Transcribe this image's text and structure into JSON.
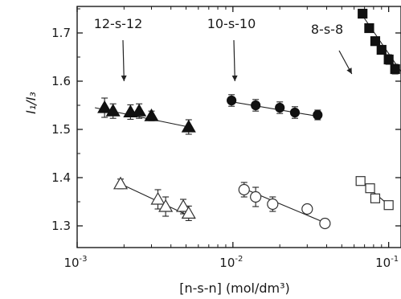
{
  "chart_data": {
    "type": "scatter",
    "title": "",
    "xlabel": "[n-s-n] (mol/dm³)",
    "ylabel": "I₁/I₃",
    "x_scale": "log",
    "xlim": [
      0.001,
      0.12
    ],
    "ylim": [
      1.255,
      1.755
    ],
    "x_ticks": [
      {
        "value": 0.001,
        "mantissa": "10",
        "exponent": "-3"
      },
      {
        "value": 0.01,
        "mantissa": "10",
        "exponent": "-2"
      },
      {
        "value": 0.1,
        "mantissa": "10",
        "exponent": "-1"
      }
    ],
    "y_ticks": [
      "1.3",
      "1.4",
      "1.5",
      "1.6",
      "1.7"
    ],
    "grid": false,
    "annotations": [
      {
        "label": "12-s-12",
        "arrow_to": [
          0.002,
          1.6
        ]
      },
      {
        "label": "10-s-10",
        "arrow_to": [
          0.0103,
          1.6
        ]
      },
      {
        "label": "8-s-8",
        "arrow_to": [
          0.058,
          1.615
        ]
      }
    ],
    "series": [
      {
        "marker": "triangle-filled",
        "x": [
          0.0015,
          0.0017,
          0.0022,
          0.0025,
          0.003,
          0.0052
        ],
        "y": [
          1.545,
          1.538,
          1.536,
          1.538,
          1.528,
          1.505
        ],
        "err": [
          0.02,
          0.015,
          0.015,
          0.015,
          0.01,
          0.015
        ],
        "fit": {
          "x": [
            0.0013,
            0.0052
          ],
          "y": [
            1.545,
            1.505
          ]
        }
      },
      {
        "marker": "triangle-open",
        "x": [
          0.0019,
          0.0033,
          0.0037,
          0.0048,
          0.0052
        ],
        "y": [
          1.387,
          1.355,
          1.34,
          1.34,
          1.326
        ],
        "err": [
          0.01,
          0.02,
          0.02,
          0.015,
          0.015
        ],
        "fit": {
          "x": [
            0.0019,
            0.0057
          ],
          "y": [
            1.387,
            1.315
          ]
        }
      },
      {
        "marker": "circle-filled",
        "x": [
          0.0098,
          0.014,
          0.02,
          0.025,
          0.035
        ],
        "y": [
          1.56,
          1.55,
          1.545,
          1.535,
          1.53
        ],
        "err": [
          0.012,
          0.012,
          0.012,
          0.012,
          0.01
        ],
        "fit": {
          "x": [
            0.0095,
            0.037
          ],
          "y": [
            1.558,
            1.526
          ]
        }
      },
      {
        "marker": "circle-open",
        "x": [
          0.0118,
          0.014,
          0.018,
          0.03,
          0.039
        ],
        "y": [
          1.375,
          1.36,
          1.345,
          1.335,
          1.305
        ],
        "err": [
          0.015,
          0.02,
          0.015,
          0.005,
          0.005
        ],
        "fit": {
          "x": [
            0.0118,
            0.04
          ],
          "y": [
            1.377,
            1.305
          ]
        }
      },
      {
        "marker": "square-filled",
        "x": [
          0.068,
          0.075,
          0.082,
          0.09,
          0.1,
          0.11
        ],
        "y": [
          1.74,
          1.71,
          1.683,
          1.665,
          1.645,
          1.625
        ],
        "err": [
          0.008,
          0.008,
          0.008,
          0.008,
          0.01,
          0.01
        ],
        "fit": {
          "x": [
            0.065,
            0.12
          ],
          "y": [
            1.745,
            1.62
          ]
        }
      },
      {
        "marker": "square-open",
        "x": [
          0.066,
          0.076,
          0.082,
          0.1
        ],
        "y": [
          1.393,
          1.378,
          1.357,
          1.343
        ],
        "err": [
          0.008,
          0.008,
          0.008,
          0.008
        ],
        "fit": {
          "x": [
            0.066,
            0.1
          ],
          "y": [
            1.393,
            1.343
          ]
        }
      }
    ]
  }
}
